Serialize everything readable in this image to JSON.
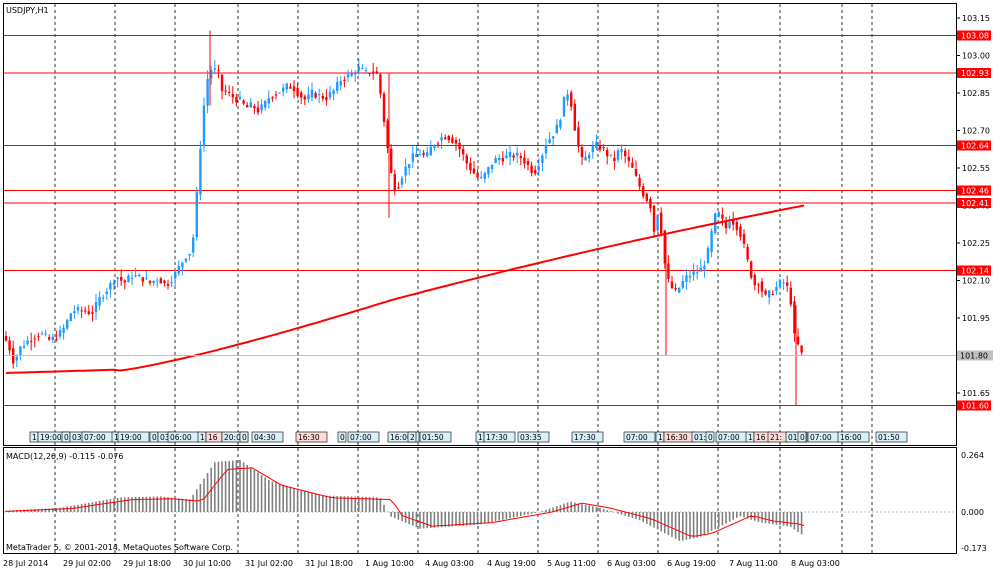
{
  "window": {
    "symbol_title": "USDJPY,H1"
  },
  "main_axis": {
    "ticks": [
      "103.15",
      "103.00",
      "102.85",
      "102.70",
      "102.55",
      "102.40",
      "102.25",
      "102.10",
      "101.95",
      "101.80",
      "101.65"
    ],
    "current_price_label": "101.80"
  },
  "horizontal_levels": [
    {
      "price": 103.08,
      "label": "103.08"
    },
    {
      "price": 102.93,
      "label": "102.93"
    },
    {
      "price": 102.64,
      "label": "102.64"
    },
    {
      "price": 102.46,
      "label": "102.46"
    },
    {
      "price": 102.41,
      "label": "102.41"
    },
    {
      "price": 102.14,
      "label": "102.14"
    },
    {
      "price": 101.6,
      "label": "101.60"
    }
  ],
  "news_tags": [
    {
      "label": "1"
    },
    {
      "label": "19:00"
    },
    {
      "label": "0"
    },
    {
      "label": "03:"
    },
    {
      "label": "07:00"
    },
    {
      "label": "1"
    },
    {
      "label": "19:00"
    },
    {
      "label": "0"
    },
    {
      "label": "03"
    },
    {
      "label": "06:00"
    },
    {
      "label": "1"
    },
    {
      "label": "16"
    },
    {
      "label": "20:0"
    },
    {
      "label": "0"
    },
    {
      "label": "04:30"
    },
    {
      "label": "16:30"
    },
    {
      "label": "0"
    },
    {
      "label": "07:00"
    },
    {
      "label": "16:00"
    },
    {
      "label": "2"
    },
    {
      "label": "01:50"
    },
    {
      "label": "1"
    },
    {
      "label": "17:30"
    },
    {
      "label": "03:35"
    },
    {
      "label": "17:30"
    },
    {
      "label": "07:00"
    },
    {
      "label": "1"
    },
    {
      "label": "16:30"
    },
    {
      "label": "01:"
    },
    {
      "label": "0"
    },
    {
      "label": "07:00"
    },
    {
      "label": "1"
    },
    {
      "label": "16"
    },
    {
      "label": "21:"
    },
    {
      "label": "01:"
    },
    {
      "label": "0"
    },
    {
      "label": "07:00"
    },
    {
      "label": "16:00"
    },
    {
      "label": "01:50"
    }
  ],
  "macd": {
    "title": "MACD(12,26,9) -0.115 -0.076",
    "ticks": [
      "0.264",
      "0.000",
      "-0.173"
    ]
  },
  "time_axis": {
    "labels": [
      "28 Jul 2014",
      "29 Jul 02:00",
      "29 Jul 18:00",
      "30 Jul 10:00",
      "31 Jul 02:00",
      "31 Jul 18:00",
      "1 Aug 10:00",
      "4 Aug 03:00",
      "4 Aug 19:00",
      "5 Aug 11:00",
      "6 Aug 03:00",
      "6 Aug 19:00",
      "7 Aug 11:00",
      "8 Aug 03:00"
    ]
  },
  "footer": {
    "copyright": "MetaTrader 5, © 2001-2014, MetaQuotes Software Corp."
  },
  "colors": {
    "bull": "#1e9bff",
    "bear": "#ff0000",
    "ma": "#ff0000",
    "level_line": "#ff0000",
    "histogram": "#808080",
    "signal": "#ff0000"
  },
  "chart_data": {
    "type": "candlestick",
    "title": "USDJPY,H1",
    "ylim": [
      101.56,
      103.2
    ],
    "path_points": [
      [
        0,
        101.89
      ],
      [
        8,
        101.85
      ],
      [
        14,
        101.77
      ],
      [
        20,
        101.83
      ],
      [
        28,
        101.86
      ],
      [
        40,
        101.89
      ],
      [
        50,
        101.86
      ],
      [
        58,
        101.88
      ],
      [
        64,
        101.91
      ],
      [
        72,
        101.98
      ],
      [
        82,
        101.98
      ],
      [
        92,
        101.97
      ],
      [
        100,
        102.03
      ],
      [
        110,
        102.08
      ],
      [
        116,
        102.12
      ],
      [
        124,
        102.09
      ],
      [
        132,
        102.12
      ],
      [
        142,
        102.11
      ],
      [
        150,
        102.09
      ],
      [
        158,
        102.11
      ],
      [
        166,
        102.08
      ],
      [
        174,
        102.12
      ],
      [
        180,
        102.16
      ],
      [
        186,
        102.2
      ],
      [
        192,
        102.22
      ],
      [
        196,
        102.4
      ],
      [
        200,
        102.62
      ],
      [
        204,
        102.8
      ],
      [
        208,
        102.92
      ],
      [
        212,
        102.95
      ],
      [
        218,
        102.93
      ],
      [
        222,
        102.86
      ],
      [
        228,
        102.85
      ],
      [
        234,
        102.83
      ],
      [
        240,
        102.82
      ],
      [
        246,
        102.79
      ],
      [
        252,
        102.8
      ],
      [
        258,
        102.78
      ],
      [
        264,
        102.8
      ],
      [
        270,
        102.84
      ],
      [
        276,
        102.85
      ],
      [
        282,
        102.86
      ],
      [
        288,
        102.88
      ],
      [
        294,
        102.87
      ],
      [
        300,
        102.84
      ],
      [
        306,
        102.82
      ],
      [
        312,
        102.85
      ],
      [
        318,
        102.84
      ],
      [
        326,
        102.83
      ],
      [
        334,
        102.86
      ],
      [
        342,
        102.91
      ],
      [
        350,
        102.92
      ],
      [
        358,
        102.95
      ],
      [
        366,
        102.93
      ],
      [
        372,
        102.94
      ],
      [
        378,
        102.92
      ],
      [
        382,
        102.8
      ],
      [
        386,
        102.68
      ],
      [
        390,
        102.55
      ],
      [
        394,
        102.47
      ],
      [
        398,
        102.48
      ],
      [
        402,
        102.52
      ],
      [
        408,
        102.57
      ],
      [
        414,
        102.6
      ],
      [
        420,
        102.61
      ],
      [
        426,
        102.59
      ],
      [
        432,
        102.64
      ],
      [
        438,
        102.66
      ],
      [
        444,
        102.68
      ],
      [
        450,
        102.67
      ],
      [
        456,
        102.65
      ],
      [
        462,
        102.61
      ],
      [
        468,
        102.56
      ],
      [
        474,
        102.53
      ],
      [
        480,
        102.5
      ],
      [
        486,
        102.53
      ],
      [
        492,
        102.57
      ],
      [
        498,
        102.59
      ],
      [
        504,
        102.59
      ],
      [
        510,
        102.6
      ],
      [
        516,
        102.6
      ],
      [
        522,
        102.59
      ],
      [
        528,
        102.56
      ],
      [
        534,
        102.53
      ],
      [
        540,
        102.58
      ],
      [
        546,
        102.65
      ],
      [
        552,
        102.68
      ],
      [
        558,
        102.72
      ],
      [
        562,
        102.78
      ],
      [
        566,
        102.86
      ],
      [
        570,
        102.84
      ],
      [
        574,
        102.73
      ],
      [
        578,
        102.64
      ],
      [
        582,
        102.58
      ],
      [
        586,
        102.59
      ],
      [
        590,
        102.62
      ],
      [
        596,
        102.64
      ],
      [
        602,
        102.63
      ],
      [
        608,
        102.6
      ],
      [
        614,
        102.58
      ],
      [
        620,
        102.63
      ],
      [
        626,
        102.59
      ],
      [
        632,
        102.55
      ],
      [
        638,
        102.49
      ],
      [
        644,
        102.44
      ],
      [
        650,
        102.41
      ],
      [
        654,
        102.3
      ],
      [
        658,
        102.38
      ],
      [
        662,
        102.28
      ],
      [
        666,
        102.12
      ],
      [
        670,
        102.08
      ],
      [
        676,
        102.05
      ],
      [
        682,
        102.09
      ],
      [
        688,
        102.12
      ],
      [
        694,
        102.13
      ],
      [
        700,
        102.14
      ],
      [
        706,
        102.18
      ],
      [
        710,
        102.25
      ],
      [
        714,
        102.35
      ],
      [
        718,
        102.37
      ],
      [
        722,
        102.34
      ],
      [
        726,
        102.31
      ],
      [
        730,
        102.35
      ],
      [
        734,
        102.33
      ],
      [
        738,
        102.31
      ],
      [
        742,
        102.27
      ],
      [
        746,
        102.2
      ],
      [
        750,
        102.14
      ],
      [
        754,
        102.08
      ],
      [
        758,
        102.1
      ],
      [
        762,
        102.06
      ],
      [
        766,
        102.03
      ],
      [
        770,
        102.05
      ],
      [
        774,
        102.06
      ],
      [
        778,
        102.08
      ],
      [
        782,
        102.1
      ],
      [
        786,
        102.08
      ],
      [
        790,
        102.05
      ],
      [
        794,
        101.88
      ],
      [
        798,
        101.84
      ],
      [
        802,
        101.8
      ]
    ]
  }
}
